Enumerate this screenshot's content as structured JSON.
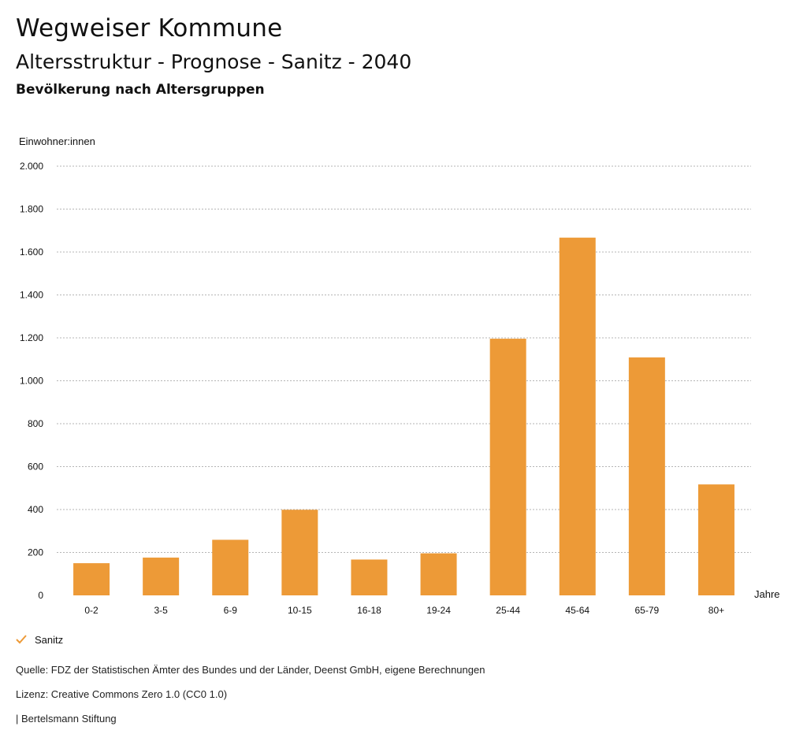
{
  "header": {
    "title": "Wegweiser Kommune",
    "subtitle": "Altersstruktur - Prognose - Sanitz - 2040",
    "heading": "Bevölkerung nach Altersgruppen"
  },
  "colors": {
    "bar": "#ED9A37",
    "grid": "#b5b5b5",
    "text": "#111111"
  },
  "chart_data": {
    "type": "bar",
    "title": "Bevölkerung nach Altersgruppen",
    "ylabel": "Einwohner:innen",
    "xlabel": "Jahre",
    "ylim": [
      0,
      2000
    ],
    "yticks": [
      0,
      200,
      400,
      600,
      800,
      1000,
      1200,
      1400,
      1600,
      1800,
      2000
    ],
    "ytick_labels": [
      "0",
      "200",
      "400",
      "600",
      "800",
      "1.000",
      "1.200",
      "1.400",
      "1.600",
      "1.800",
      "2.000"
    ],
    "categories": [
      "0-2",
      "3-5",
      "6-9",
      "10-15",
      "16-18",
      "19-24",
      "25-44",
      "45-64",
      "65-79",
      "80+"
    ],
    "series": [
      {
        "name": "Sanitz",
        "values": [
          150,
          176,
          259,
          399,
          167,
          196,
          1196,
          1667,
          1109,
          517
        ]
      }
    ],
    "grid": true,
    "legend": "bottom-left"
  },
  "legend": {
    "items": [
      {
        "label": "Sanitz",
        "icon": "check-icon"
      }
    ]
  },
  "footer": {
    "source": "Quelle: FDZ der Statistischen Ämter des Bundes und der Länder, Deenst GmbH, eigene Berechnungen",
    "license": "Lizenz: Creative Commons Zero 1.0 (CC0 1.0)",
    "publisher": "| Bertelsmann Stiftung"
  }
}
